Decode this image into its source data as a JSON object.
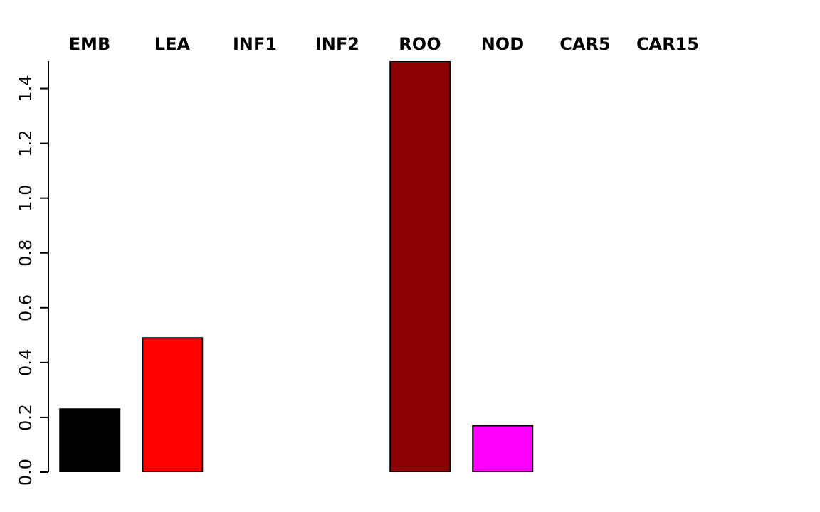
{
  "chart_data": {
    "type": "bar",
    "categories": [
      "EMB",
      "LEA",
      "INF1",
      "INF2",
      "ROO",
      "NOD",
      "CAR5",
      "CAR15"
    ],
    "values": [
      0.23,
      0.49,
      0,
      0,
      1.5,
      0.17,
      0,
      0
    ],
    "colors": [
      "#000000",
      "#ff0000",
      "#000000",
      "#000000",
      "#8b0000",
      "#ff00ff",
      "#000000",
      "#000000"
    ],
    "ylim": [
      0,
      1.5
    ],
    "yticks": [
      {
        "value": 0,
        "label": "0.0"
      },
      0.2,
      0.4,
      0.6,
      0.8,
      {
        "value": 1,
        "label": "1.0"
      },
      1.2,
      1.4
    ],
    "grid": false,
    "legend": false
  }
}
